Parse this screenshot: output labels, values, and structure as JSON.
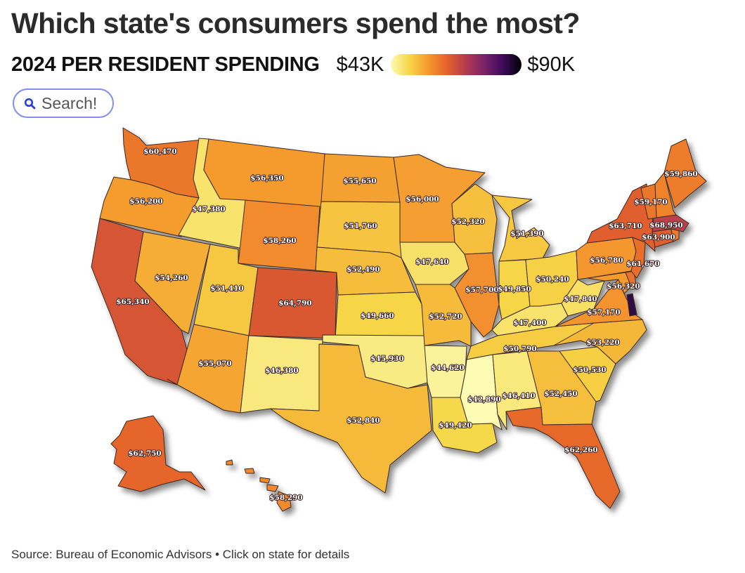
{
  "header": {
    "title": "Which state's consumers spend the most?",
    "subtitle": "2024 PER RESIDENT SPENDING",
    "legend_low": "$43K",
    "legend_high": "$90K"
  },
  "search": {
    "placeholder": "Search!",
    "icon": "search-icon"
  },
  "footer": {
    "source": "Source: Bureau of Economic Advisors • Click on state for details"
  },
  "colors": {
    "scale": [
      "#fcfbb4",
      "#f6d646",
      "#f59a2e",
      "#e5622a",
      "#b33b4f",
      "#7a2169",
      "#3c0b5c",
      "#000004"
    ],
    "border": "#3a2a20",
    "search_border": "#7f8ff0",
    "search_icon": "#2a3fd6"
  },
  "scale_domain": [
    43000,
    90000
  ],
  "states": [
    {
      "id": "WA",
      "value": 60470,
      "label": "$60,470"
    },
    {
      "id": "OR",
      "value": 56200,
      "label": "$56,200"
    },
    {
      "id": "CA",
      "value": 65340,
      "label": "$65,340"
    },
    {
      "id": "ID",
      "value": 47380,
      "label": "$47,380"
    },
    {
      "id": "NV",
      "value": 54260,
      "label": "$54,260"
    },
    {
      "id": "MT",
      "value": 56350,
      "label": "$56,350"
    },
    {
      "id": "WY",
      "value": 58260,
      "label": "$58,260"
    },
    {
      "id": "UT",
      "value": 51410,
      "label": "$51,410"
    },
    {
      "id": "AZ",
      "value": 55070,
      "label": "$55,070"
    },
    {
      "id": "CO",
      "value": 64790,
      "label": "$64,790"
    },
    {
      "id": "NM",
      "value": 46380,
      "label": "$46,380"
    },
    {
      "id": "ND",
      "value": 55650,
      "label": "$55,650"
    },
    {
      "id": "SD",
      "value": 51760,
      "label": "$51,760"
    },
    {
      "id": "NE",
      "value": 52490,
      "label": "$52,490"
    },
    {
      "id": "KS",
      "value": 49660,
      "label": "$49,660"
    },
    {
      "id": "OK",
      "value": 45930,
      "label": "$45,930"
    },
    {
      "id": "TX",
      "value": 52840,
      "label": "$52,840"
    },
    {
      "id": "MN",
      "value": 56000,
      "label": "$56,000"
    },
    {
      "id": "IA",
      "value": 47640,
      "label": "$47,640"
    },
    {
      "id": "MO",
      "value": 52720,
      "label": "$52,720"
    },
    {
      "id": "AR",
      "value": 44620,
      "label": "$44,620"
    },
    {
      "id": "LA",
      "value": 49420,
      "label": "$49,420"
    },
    {
      "id": "WI",
      "value": 52320,
      "label": "$52,320"
    },
    {
      "id": "IL",
      "value": 57700,
      "label": "$57,700"
    },
    {
      "id": "MI",
      "value": 51390,
      "label": "$51,390"
    },
    {
      "id": "IN",
      "value": 49850,
      "label": "$49,850"
    },
    {
      "id": "OH",
      "value": 50240,
      "label": "$50,240"
    },
    {
      "id": "KY",
      "value": 47400,
      "label": "$47,400"
    },
    {
      "id": "TN",
      "value": 50790,
      "label": "$50,790"
    },
    {
      "id": "MS",
      "value": 42890,
      "label": "$42,890"
    },
    {
      "id": "AL",
      "value": 46410,
      "label": "$46,410"
    },
    {
      "id": "GA",
      "value": 52450,
      "label": "$52,450"
    },
    {
      "id": "FL",
      "value": 62260,
      "label": "$62,260"
    },
    {
      "id": "SC",
      "value": 50530,
      "label": "$50,530"
    },
    {
      "id": "NC",
      "value": 53220,
      "label": "$53,220"
    },
    {
      "id": "VA",
      "value": 57170,
      "label": "$57,170"
    },
    {
      "id": "WV",
      "value": 47840,
      "label": "$47,840"
    },
    {
      "id": "MD",
      "value": 56320,
      "label": "$56,320"
    },
    {
      "id": "DE",
      "value": 61000,
      "label": ""
    },
    {
      "id": "DC",
      "value": 85000,
      "label": ""
    },
    {
      "id": "PA",
      "value": 56780,
      "label": "$56,780"
    },
    {
      "id": "NJ",
      "value": 61670,
      "label": "$61,670"
    },
    {
      "id": "NY",
      "value": 63710,
      "label": "$63,710"
    },
    {
      "id": "CT",
      "value": 63900,
      "label": "$63,900"
    },
    {
      "id": "RI",
      "value": 60000,
      "label": ""
    },
    {
      "id": "MA",
      "value": 68950,
      "label": "$68,950"
    },
    {
      "id": "VT",
      "value": 60500,
      "label": ""
    },
    {
      "id": "NH",
      "value": 59170,
      "label": "$59,170"
    },
    {
      "id": "ME",
      "value": 59860,
      "label": "$59,860"
    },
    {
      "id": "AK",
      "value": 62750,
      "label": "$62,750"
    },
    {
      "id": "HI",
      "value": 58290,
      "label": "$58,290"
    }
  ]
}
